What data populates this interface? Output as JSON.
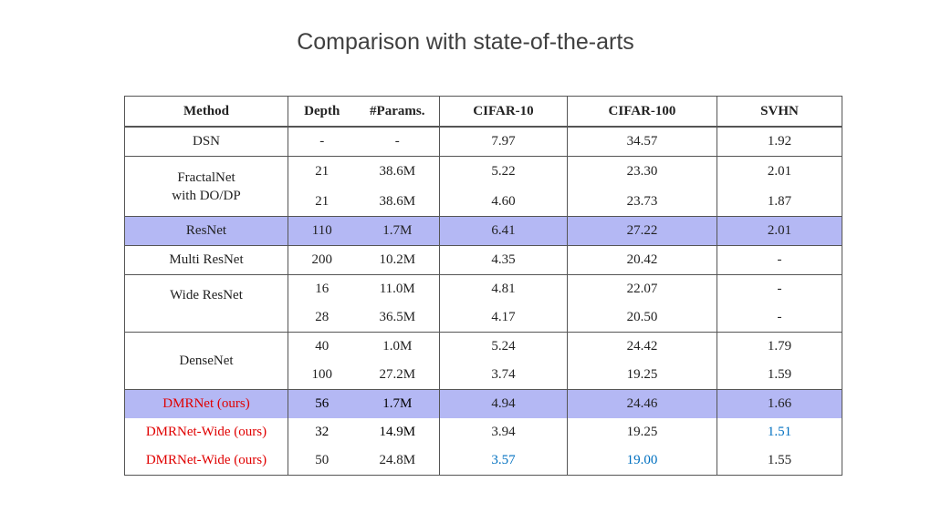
{
  "title": "Comparison with state-of-the-arts",
  "table": {
    "headers": [
      "Method",
      "Depth",
      "#Params.",
      "CIFAR-10",
      "CIFAR-100",
      "SVHN"
    ],
    "rows": [
      {
        "method": "DSN",
        "depth": "-",
        "params": "-",
        "c10": "7.97",
        "c100": "34.57",
        "svhn": "1.92"
      },
      {
        "method_line1": "FractalNet",
        "method_line2": "with DO/DP",
        "depth": "21",
        "params": "38.6M",
        "c10": "5.22",
        "c100": "23.30",
        "svhn": "2.01"
      },
      {
        "depth": "21",
        "params": "38.6M",
        "c10": "4.60",
        "c100": "23.73",
        "svhn": "1.87"
      },
      {
        "method": "ResNet",
        "depth": "110",
        "params": "1.7M",
        "c10": "6.41",
        "c100": "27.22",
        "svhn": "2.01"
      },
      {
        "method": "Multi ResNet",
        "depth": "200",
        "params": "10.2M",
        "c10": "4.35",
        "c100": "20.42",
        "svhn": "-"
      },
      {
        "method": "Wide ResNet",
        "depth": "16",
        "params": "11.0M",
        "c10": "4.81",
        "c100": "22.07",
        "svhn": "-"
      },
      {
        "depth": "28",
        "params": "36.5M",
        "c10": "4.17",
        "c100": "20.50",
        "svhn": "-"
      },
      {
        "method": "DenseNet",
        "depth": "40",
        "params": "1.0M",
        "c10": "5.24",
        "c100": "24.42",
        "svhn": "1.79"
      },
      {
        "depth": "100",
        "params": "27.2M",
        "c10": "3.74",
        "c100": "19.25",
        "svhn": "1.59"
      },
      {
        "method": "DMRNet (ours)",
        "depth": "56",
        "params": "1.7M",
        "c10": "4.94",
        "c100": "24.46",
        "svhn": "1.66"
      },
      {
        "method": "DMRNet-Wide (ours)",
        "depth": "32",
        "params": "14.9M",
        "c10": "3.94",
        "c100": "19.25",
        "svhn": "1.51"
      },
      {
        "method": "DMRNet-Wide (ours)",
        "depth": "50",
        "params": "24.8M",
        "c10": "3.57",
        "c100": "19.00",
        "svhn": "1.55"
      }
    ]
  },
  "colors": {
    "highlight_row": "#b4b8f4",
    "ours_method": "#e00000",
    "best_value": "#0070c0"
  }
}
